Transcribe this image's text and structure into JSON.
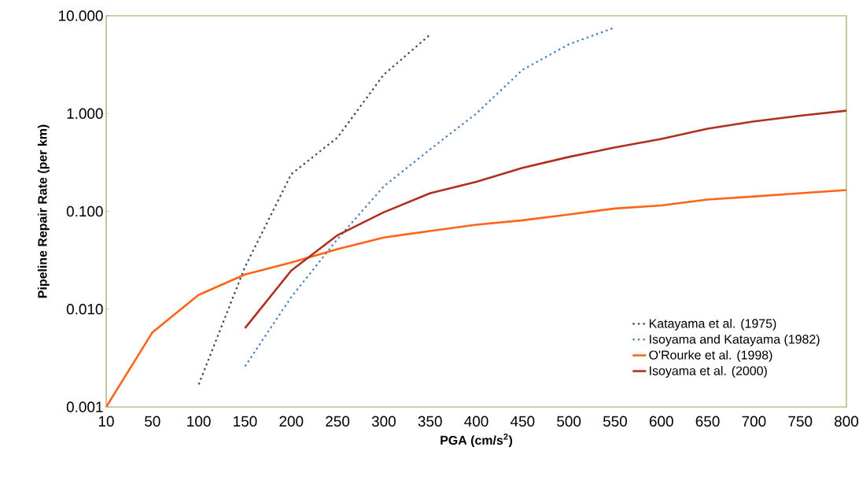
{
  "chart_data": {
    "type": "line",
    "xlabel": "PGA (cm/s$^{2}$)",
    "ylabel": "Pipeline Repair Rate (per km)",
    "categories": [
      "10",
      "50",
      "100",
      "150",
      "200",
      "250",
      "300",
      "350",
      "400",
      "450",
      "500",
      "550",
      "600",
      "650",
      "700",
      "750",
      "800"
    ],
    "log": "y",
    "ylim": [
      0.001,
      10
    ],
    "yticks": [
      {
        "value": 0.001,
        "label": "0.001"
      },
      {
        "value": 0.01,
        "label": "0.010"
      },
      {
        "value": 0.1,
        "label": "0.100"
      },
      {
        "value": 1,
        "label": "1.000"
      },
      {
        "value": 10,
        "label": "10.000"
      }
    ],
    "grid": false,
    "legend": "bottom right",
    "marker": "none",
    "series": [
      {
        "name": "Katayama et al. (1975)",
        "color": "#404860",
        "line_style": "dotted",
        "values": [
          null,
          null,
          0.0017,
          0.027,
          0.24,
          0.57,
          2.5,
          6.4,
          null,
          null,
          null,
          null,
          null,
          null,
          null,
          null,
          null
        ]
      },
      {
        "name": "Isoyama and Katayama (1982)",
        "color": "#4a80c0",
        "line_style": "dotted",
        "values": [
          null,
          null,
          null,
          0.0026,
          0.0133,
          0.052,
          0.18,
          0.43,
          1.0,
          2.8,
          5.1,
          7.6,
          null,
          null,
          null,
          null,
          null
        ]
      },
      {
        "name": "O'Rourke et al. (1998)",
        "color": "#ff6418",
        "line_style": "solid",
        "values": [
          0.001,
          0.0058,
          0.014,
          0.0226,
          0.03,
          0.041,
          0.054,
          0.063,
          0.073,
          0.081,
          0.093,
          0.107,
          0.115,
          0.132,
          0.142,
          0.153,
          0.165
        ]
      },
      {
        "name": "Isoyama et al. (2000)",
        "color": "#b03020",
        "line_style": "solid",
        "values": [
          null,
          null,
          null,
          0.0064,
          0.0248,
          0.057,
          0.098,
          0.153,
          0.2,
          0.278,
          0.36,
          0.45,
          0.55,
          0.7,
          0.83,
          0.95,
          1.07
        ]
      }
    ]
  }
}
